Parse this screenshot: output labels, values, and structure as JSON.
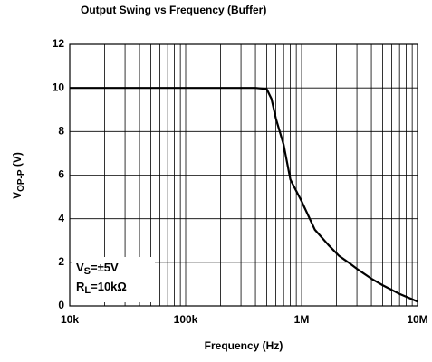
{
  "chart_data": {
    "type": "line",
    "title": "Output Swing vs Frequency (Buffer)",
    "x_label": "Frequency (Hz)",
    "y_label": {
      "main": "V",
      "sub": "OP-P",
      "rest": " (V)"
    },
    "annotations": [
      {
        "main": "V",
        "sub": "S",
        "rest": "=±5V"
      },
      {
        "main": "R",
        "sub": "L",
        "rest": "=10kΩ"
      }
    ],
    "x": [
      10000,
      400000,
      500000,
      550000,
      600000,
      700000,
      800000,
      1000000,
      1300000,
      1700000,
      2100000,
      2600000,
      3000000,
      4000000,
      5000000,
      7000000,
      10000000
    ],
    "values": [
      10,
      10,
      9.95,
      9.5,
      8.6,
      7.4,
      5.8,
      4.8,
      3.5,
      2.8,
      2.3,
      1.95,
      1.7,
      1.25,
      0.95,
      0.55,
      0.2
    ],
    "color": "#000000",
    "xlog": true,
    "xlim": [
      10000,
      10000000
    ],
    "xticks": [
      {
        "value": 10000,
        "label": "10k"
      },
      {
        "value": 100000,
        "label": "100k"
      },
      {
        "value": 1000000,
        "label": "1M"
      },
      {
        "value": 10000000,
        "label": "10M"
      }
    ],
    "xminor_ticks": [
      20000,
      30000,
      40000,
      50000,
      60000,
      70000,
      80000,
      90000,
      200000,
      300000,
      400000,
      500000,
      600000,
      700000,
      800000,
      900000,
      2000000,
      3000000,
      4000000,
      5000000,
      6000000,
      7000000,
      8000000,
      9000000
    ],
    "ylim": [
      0,
      12
    ],
    "yticks": [
      0,
      2,
      4,
      6,
      8,
      10,
      12
    ],
    "grid": true
  }
}
